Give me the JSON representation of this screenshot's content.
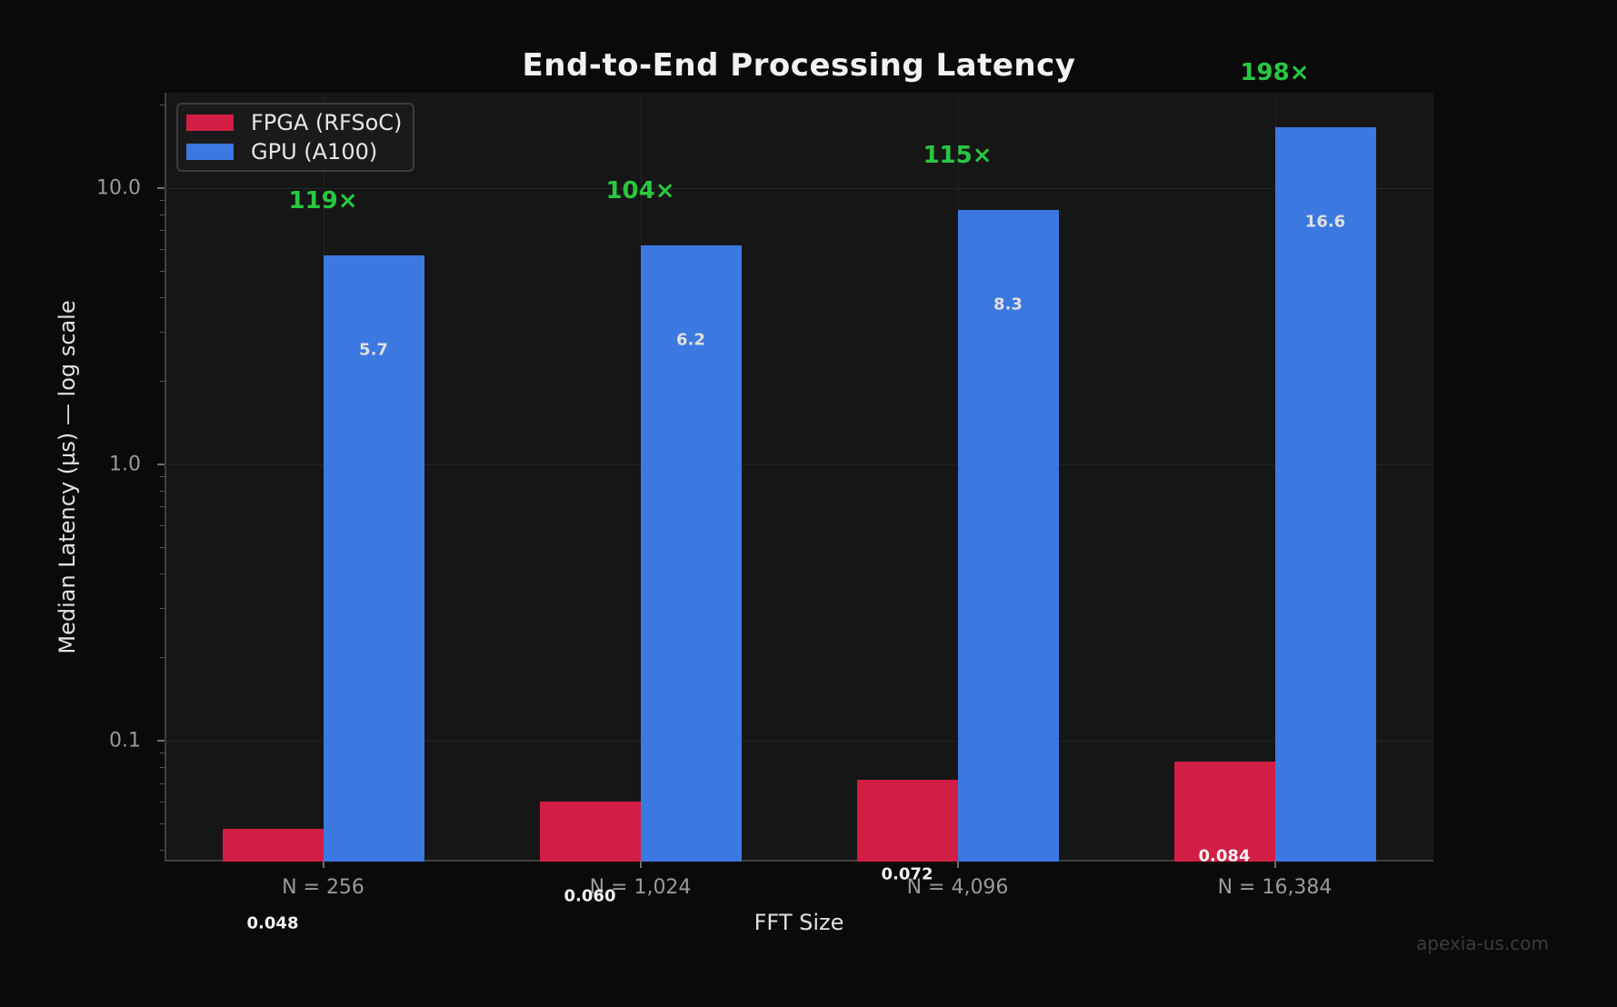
{
  "chart_data": {
    "type": "bar",
    "title": "End-to-End Processing Latency",
    "xlabel": "FFT Size",
    "ylabel": "Median Latency (µs) — log scale",
    "yscale": "log",
    "ylim": [
      0.0365,
      22.1
    ],
    "ytick_values": [
      10,
      1,
      0.1
    ],
    "ytick_labels": [
      "10.0",
      "1.0",
      "0.1"
    ],
    "grid": "major",
    "legend_position": "upper left",
    "categories": [
      "N = 256",
      "N = 1,024",
      "N = 4,096",
      "N = 16,384"
    ],
    "series": [
      {
        "name": "FPGA (RFSoC)",
        "color": "#d21e45",
        "values": [
          0.048,
          0.06,
          0.072,
          0.084
        ],
        "labels": [
          "0.048",
          "0.060",
          "0.072",
          "0.084"
        ]
      },
      {
        "name": "GPU (A100)",
        "color": "#3b78e0",
        "values": [
          5.7,
          6.2,
          8.3,
          16.6
        ],
        "labels": [
          "5.7",
          "6.2",
          "8.3",
          "16.6"
        ]
      }
    ],
    "speedup_labels": [
      "119×",
      "104×",
      "115×",
      "198×"
    ],
    "speedup_color": "#28c840",
    "watermark": "apexia-us.com"
  }
}
